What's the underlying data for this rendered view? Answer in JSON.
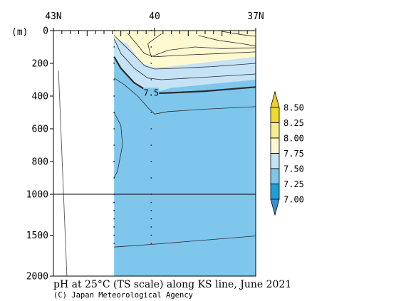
{
  "chart_data": {
    "type": "heatmap",
    "title": "pH at 25°C (TS scale) along KS line, June 2021",
    "credit": "(C) Japan Meteorological Agency",
    "y_unit_label": "(m)",
    "x_axis": {
      "type": "latitude",
      "range": [
        43,
        37
      ],
      "tick_labels": [
        {
          "lat": 43,
          "label": "43N"
        },
        {
          "lat": 40,
          "label": "40"
        },
        {
          "lat": 37,
          "label": "37N"
        }
      ],
      "minor_ticks_every_deg": 0.25
    },
    "y_axis": {
      "type": "depth",
      "range": [
        0,
        2000
      ],
      "split_depth": 1000,
      "tick_labels": [
        "0",
        "200",
        "400",
        "600",
        "800",
        "1000",
        "1500",
        "2000"
      ],
      "tick_values": [
        0,
        200,
        400,
        600,
        800,
        1000,
        1500,
        2000
      ]
    },
    "data_coverage": {
      "lat_start": 41.2,
      "lat_end": 37
    },
    "stations_lat": [
      41.2,
      40.1
    ],
    "station_sample_depths": [
      0,
      100,
      200,
      300,
      400,
      500,
      600,
      700,
      800,
      900,
      1000,
      1100,
      1200,
      1300,
      1400,
      1500,
      1600
    ],
    "colorbar": {
      "levels": [
        "7.00",
        "7.25",
        "7.50",
        "7.75",
        "8.00",
        "8.25",
        "8.50"
      ],
      "bands": [
        {
          "range": "<7.00",
          "color": "#3a8fd4"
        },
        {
          "range": "7.00-7.25",
          "color": "#1f9fd8"
        },
        {
          "range": "7.25-7.50",
          "color": "#7fc6ec"
        },
        {
          "range": "7.50-7.75",
          "color": "#c5e3f5"
        },
        {
          "range": "7.75-8.00",
          "color": "#fff9d2"
        },
        {
          "range": "8.00-8.25",
          "color": "#f7ec8f"
        },
        {
          "range": "8.25-8.50",
          "color": "#f1da2e"
        },
        {
          "range": ">8.50",
          "color": "#efcf1f"
        }
      ]
    },
    "contour_labels": [
      {
        "value": "7.5",
        "lat": 40.1,
        "depth": 380
      }
    ],
    "regions": [
      {
        "name": "pH 7.75-8.00 surface layer",
        "band": "7.75-8.00",
        "outline": [
          [
            41.2,
            0
          ],
          [
            37,
            0
          ],
          [
            37,
            160
          ],
          [
            39.6,
            220
          ],
          [
            40.05,
            225
          ],
          [
            40.4,
            195
          ],
          [
            40.8,
            80
          ],
          [
            41.2,
            50
          ]
        ]
      },
      {
        "name": "pH 7.50-7.75 subsurface layer",
        "band": "7.50-7.75",
        "outline": [
          [
            41.2,
            0
          ],
          [
            37,
            0
          ],
          [
            37,
            300
          ],
          [
            38.5,
            330
          ],
          [
            39.5,
            350
          ],
          [
            40.05,
            380
          ],
          [
            40.6,
            330
          ],
          [
            41.0,
            230
          ],
          [
            41.2,
            170
          ]
        ]
      }
    ],
    "contour_lines": [
      {
        "value": "7.5",
        "emphasis": true,
        "points": [
          [
            41.2,
            160
          ],
          [
            41.0,
            230
          ],
          [
            40.6,
            320
          ],
          [
            40.2,
            370
          ],
          [
            40.0,
            383
          ],
          [
            39.5,
            380
          ],
          [
            38.5,
            370
          ],
          [
            37,
            345
          ]
        ]
      },
      {
        "value": "7.45",
        "points": [
          [
            41.2,
            290
          ],
          [
            40.9,
            330
          ],
          [
            40.5,
            400
          ],
          [
            40.2,
            470
          ],
          [
            40.0,
            510
          ],
          [
            39.6,
            495
          ],
          [
            38.5,
            480
          ],
          [
            37,
            465
          ]
        ]
      },
      {
        "value": "7.55",
        "points": [
          [
            41.2,
            50
          ],
          [
            41.0,
            140
          ],
          [
            40.6,
            230
          ],
          [
            40.2,
            290
          ],
          [
            39.8,
            300
          ],
          [
            38.5,
            285
          ],
          [
            37,
            265
          ]
        ]
      },
      {
        "value": "7.6",
        "points": [
          [
            41.2,
            30
          ],
          [
            40.9,
            90
          ],
          [
            40.5,
            170
          ],
          [
            40.3,
            215
          ],
          [
            40.0,
            235
          ],
          [
            39.3,
            230
          ],
          [
            38.3,
            220
          ],
          [
            37,
            200
          ]
        ]
      },
      {
        "value": "7.7",
        "points": [
          [
            40.8,
            15
          ],
          [
            40.5,
            90
          ],
          [
            40.3,
            140
          ],
          [
            40.0,
            160
          ],
          [
            39.2,
            150
          ],
          [
            38.0,
            140
          ],
          [
            37,
            130
          ]
        ]
      },
      {
        "value": "7.8",
        "points": [
          [
            39.8,
            20
          ],
          [
            40.2,
            80
          ],
          [
            40.1,
            160
          ],
          [
            39.6,
            120
          ],
          [
            38.8,
            100
          ],
          [
            38.0,
            110
          ],
          [
            37,
            105
          ]
        ]
      },
      {
        "value": "7.82",
        "points": [
          [
            38.7,
            30
          ],
          [
            38.1,
            60
          ],
          [
            37.4,
            80
          ],
          [
            37,
            95
          ]
        ]
      },
      {
        "value": "7.85",
        "points": [
          [
            38.0,
            5
          ],
          [
            37.4,
            25
          ],
          [
            37,
            35
          ]
        ]
      },
      {
        "value": "7.45 lobe",
        "points": [
          [
            41.2,
            500
          ],
          [
            41.0,
            580
          ],
          [
            40.95,
            700
          ],
          [
            41.1,
            860
          ],
          [
            41.2,
            900
          ]
        ]
      },
      {
        "value": "7.4",
        "points": [
          [
            41.2,
            1645
          ],
          [
            40.0,
            1610
          ],
          [
            38.5,
            1560
          ],
          [
            37,
            1510
          ]
        ]
      }
    ],
    "edge_line": {
      "points": [
        [
          42.85,
          245
        ],
        [
          42.7,
          1000
        ],
        [
          42.6,
          2000
        ]
      ]
    }
  }
}
